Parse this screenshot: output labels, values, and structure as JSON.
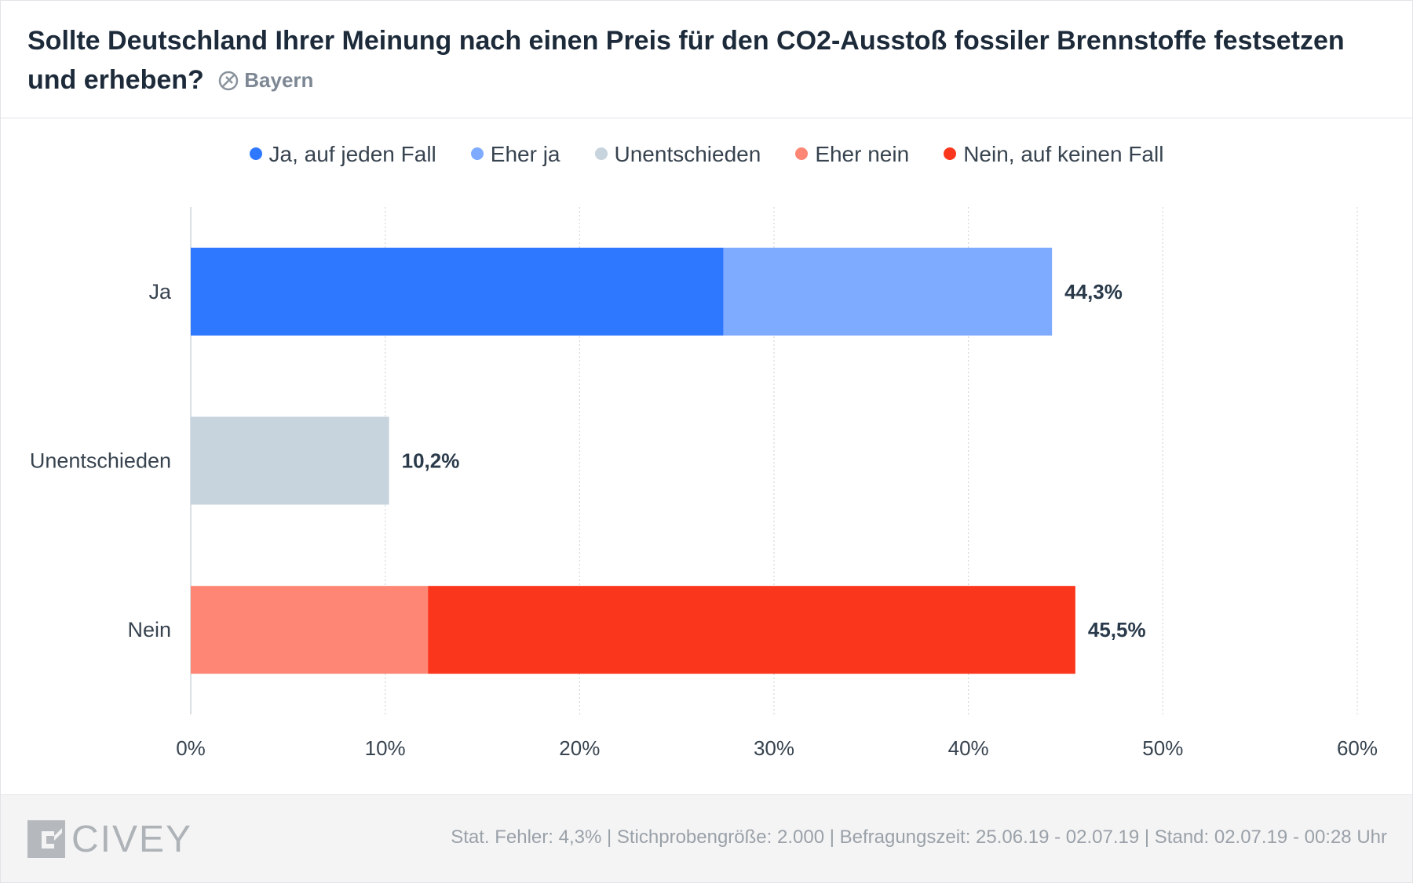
{
  "header": {
    "title": "Sollte Deutschland Ihrer Meinung nach einen Preis für den CO2-Ausstoß fossiler Brennstoffe festsetzen und erheben?",
    "region": "Bayern",
    "region_icon": "no-location-icon"
  },
  "legend": [
    {
      "label": "Ja, auf jeden Fall",
      "color": "#2e78ff"
    },
    {
      "label": "Eher ja",
      "color": "#7eaaff"
    },
    {
      "label": "Unentschieden",
      "color": "#c7d3dd"
    },
    {
      "label": "Eher nein",
      "color": "#fd8774"
    },
    {
      "label": "Nein, auf keinen Fall",
      "color": "#fa361c"
    }
  ],
  "chart_data": {
    "type": "bar",
    "orientation": "horizontal",
    "stacked": true,
    "categories": [
      "Ja",
      "Unentschieden",
      "Nein"
    ],
    "series": [
      {
        "name": "Ja, auf jeden Fall",
        "color": "#2e78ff",
        "values": [
          27.4,
          0,
          0
        ]
      },
      {
        "name": "Eher ja",
        "color": "#7eaaff",
        "values": [
          16.9,
          0,
          0
        ]
      },
      {
        "name": "Unentschieden",
        "color": "#c7d3dd",
        "values": [
          0,
          10.2,
          0
        ]
      },
      {
        "name": "Eher nein",
        "color": "#fd8774",
        "values": [
          0,
          0,
          12.2
        ]
      },
      {
        "name": "Nein, auf keinen Fall",
        "color": "#fa361c",
        "values": [
          0,
          0,
          33.3
        ]
      }
    ],
    "totals": [
      44.3,
      10.2,
      45.5
    ],
    "total_labels": [
      "44,3%",
      "10,2%",
      "45,5%"
    ],
    "xlim": [
      0,
      60
    ],
    "xticks": [
      0,
      10,
      20,
      30,
      40,
      50,
      60
    ],
    "xtick_labels": [
      "0%",
      "10%",
      "20%",
      "30%",
      "40%",
      "50%",
      "60%"
    ],
    "grid": true,
    "legend_position": "top"
  },
  "footer": {
    "logo_text": "CIVEY",
    "meta": "Stat. Fehler: 4,3% | Stichprobengröße: 2.000 | Befragungszeit: 25.06.19 - 02.07.19 | Stand: 02.07.19 - 00:28 Uhr"
  }
}
